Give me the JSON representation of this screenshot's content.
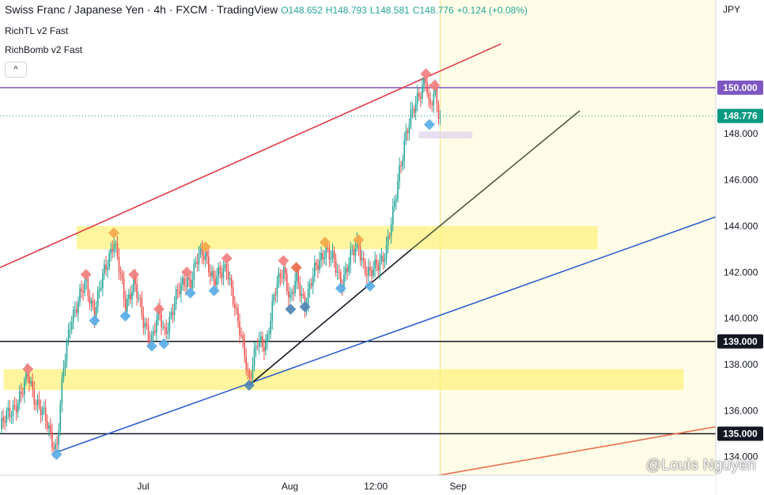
{
  "legend": {
    "symbol": "Swiss Franc / Japanese Yen",
    "interval": "4h",
    "exchange": "FXCM",
    "source": "TradingView",
    "open": "O148.652",
    "high": "H148.793",
    "low": "L148.581",
    "close": "C148.776",
    "change": "+0.124 (+0.08%)",
    "dot": "·"
  },
  "indicators": [
    {
      "label": "RichTL v2 Fast"
    },
    {
      "label": "RichBomb v2 Fast"
    }
  ],
  "collapse_icon": "chevron-up-icon",
  "collapse_glyph": "^",
  "watermark": "@Louis Nguyen",
  "colors": {
    "up": "#26a69a",
    "down": "#ef5350",
    "zone": "#fff176",
    "future": "#fffde7",
    "resistance_channel": "#e03a45",
    "support_channel": "#2f5fd0",
    "lower_channel": "#e7704f",
    "trendline": "#131722",
    "trend_ext": "#4d5a3a",
    "hline_150": "#7e57c2",
    "price_label": "#089981"
  },
  "chart_data": {
    "type": "candlestick",
    "currency": "JPY",
    "ylim": [
      133.2,
      153.8
    ],
    "ytick_values": [
      134,
      136,
      138,
      140,
      142,
      144,
      146,
      148
    ],
    "ytick_labels": [
      "134.000",
      "136.000",
      "138.000",
      "140.000",
      "142.000",
      "144.000",
      "146.000",
      "148.000"
    ],
    "xtick_labels": [
      "Jul",
      "Aug",
      "12:00",
      "Sep"
    ],
    "xtick_positions": [
      0.2,
      0.405,
      0.525,
      0.64
    ],
    "last_price": 148.776,
    "last_price_label": "148.776",
    "horizontal_lines": [
      {
        "value": 150.0,
        "label": "150.000",
        "style": "purple"
      },
      {
        "value": 139.0,
        "label": "139.000",
        "style": "black"
      },
      {
        "value": 135.0,
        "label": "135.000",
        "style": "black"
      }
    ],
    "zones": [
      {
        "x0": 0.107,
        "x1": 0.835,
        "y0": 143.0,
        "y1": 144.0
      },
      {
        "x0": 0.005,
        "x1": 0.955,
        "y0": 136.9,
        "y1": 137.8
      }
    ],
    "future_region_start": 0.615,
    "trendlines": [
      {
        "name": "resistance",
        "x0": 0.0,
        "y0": 142.2,
        "x1": 0.7,
        "y1": 151.9,
        "style": "resistance_channel"
      },
      {
        "name": "support",
        "x0": 0.079,
        "y0": 134.2,
        "x1": 1.0,
        "y1": 144.4,
        "style": "support_channel"
      },
      {
        "name": "rising",
        "x0": 0.348,
        "y0": 137.1,
        "x1": 0.575,
        "y1": 143.0,
        "style": "trendline"
      },
      {
        "name": "rising-ext",
        "x0": 0.575,
        "y0": 143.0,
        "x1": 0.81,
        "y1": 149.0,
        "style": "trend_ext"
      },
      {
        "name": "lower",
        "x0": 0.595,
        "y0": 133.1,
        "x1": 1.0,
        "y1": 135.3,
        "style": "lower_channel"
      }
    ],
    "signals": [
      {
        "x": 0.039,
        "y": 137.8,
        "type": "sell"
      },
      {
        "x": 0.079,
        "y": 134.1,
        "type": "buy"
      },
      {
        "x": 0.12,
        "y": 141.9,
        "type": "sell"
      },
      {
        "x": 0.132,
        "y": 139.9,
        "type": "buy"
      },
      {
        "x": 0.159,
        "y": 143.7,
        "type": "sell-strong"
      },
      {
        "x": 0.175,
        "y": 140.1,
        "type": "buy"
      },
      {
        "x": 0.187,
        "y": 141.9,
        "type": "sell"
      },
      {
        "x": 0.212,
        "y": 138.8,
        "type": "buy"
      },
      {
        "x": 0.222,
        "y": 140.4,
        "type": "sell"
      },
      {
        "x": 0.229,
        "y": 138.9,
        "type": "buy"
      },
      {
        "x": 0.261,
        "y": 142.0,
        "type": "sell"
      },
      {
        "x": 0.266,
        "y": 141.1,
        "type": "buy"
      },
      {
        "x": 0.287,
        "y": 143.1,
        "type": "sell-strong"
      },
      {
        "x": 0.299,
        "y": 141.2,
        "type": "buy"
      },
      {
        "x": 0.317,
        "y": 142.6,
        "type": "sell"
      },
      {
        "x": 0.348,
        "y": 137.1,
        "type": "buy-strong"
      },
      {
        "x": 0.396,
        "y": 142.5,
        "type": "sell"
      },
      {
        "x": 0.406,
        "y": 140.4,
        "type": "buy-strong"
      },
      {
        "x": 0.414,
        "y": 142.2,
        "type": "sell-strong"
      },
      {
        "x": 0.426,
        "y": 140.5,
        "type": "buy-strong"
      },
      {
        "x": 0.454,
        "y": 143.3,
        "type": "sell-strong"
      },
      {
        "x": 0.476,
        "y": 141.3,
        "type": "buy"
      },
      {
        "x": 0.501,
        "y": 143.4,
        "type": "sell-strong"
      },
      {
        "x": 0.517,
        "y": 141.4,
        "type": "buy"
      },
      {
        "x": 0.595,
        "y": 150.6,
        "type": "sell"
      },
      {
        "x": 0.607,
        "y": 150.1,
        "type": "sell"
      },
      {
        "x": 0.6,
        "y": 148.4,
        "type": "buy"
      }
    ],
    "path": [
      [
        0.0,
        135.2
      ],
      [
        0.017,
        136.1
      ],
      [
        0.031,
        136.7
      ],
      [
        0.039,
        137.6
      ],
      [
        0.052,
        136.3
      ],
      [
        0.066,
        135.4
      ],
      [
        0.079,
        134.3
      ],
      [
        0.089,
        137.8
      ],
      [
        0.099,
        140.1
      ],
      [
        0.108,
        140.6
      ],
      [
        0.12,
        141.5
      ],
      [
        0.132,
        140.3
      ],
      [
        0.146,
        142.0
      ],
      [
        0.159,
        143.5
      ],
      [
        0.167,
        142.0
      ],
      [
        0.175,
        140.5
      ],
      [
        0.187,
        141.7
      ],
      [
        0.2,
        139.8
      ],
      [
        0.212,
        139.2
      ],
      [
        0.222,
        140.2
      ],
      [
        0.229,
        139.3
      ],
      [
        0.245,
        140.8
      ],
      [
        0.261,
        141.8
      ],
      [
        0.266,
        141.6
      ],
      [
        0.277,
        142.6
      ],
      [
        0.287,
        142.9
      ],
      [
        0.299,
        141.5
      ],
      [
        0.308,
        141.9
      ],
      [
        0.317,
        142.4
      ],
      [
        0.33,
        140.0
      ],
      [
        0.342,
        138.6
      ],
      [
        0.348,
        137.3
      ],
      [
        0.36,
        138.9
      ],
      [
        0.372,
        139.0
      ],
      [
        0.384,
        141.0
      ],
      [
        0.396,
        142.3
      ],
      [
        0.406,
        140.7
      ],
      [
        0.414,
        141.7
      ],
      [
        0.426,
        140.7
      ],
      [
        0.44,
        142.0
      ],
      [
        0.454,
        143.1
      ],
      [
        0.466,
        142.4
      ],
      [
        0.476,
        141.6
      ],
      [
        0.49,
        142.6
      ],
      [
        0.501,
        143.2
      ],
      [
        0.509,
        142.3
      ],
      [
        0.517,
        141.8
      ],
      [
        0.53,
        142.5
      ],
      [
        0.54,
        143.0
      ],
      [
        0.548,
        144.2
      ],
      [
        0.558,
        146.5
      ],
      [
        0.566,
        147.8
      ],
      [
        0.574,
        148.6
      ],
      [
        0.585,
        149.8
      ],
      [
        0.595,
        150.4
      ],
      [
        0.6,
        148.8
      ],
      [
        0.607,
        149.9
      ],
      [
        0.612,
        149.2
      ],
      [
        0.615,
        148.78
      ]
    ]
  }
}
